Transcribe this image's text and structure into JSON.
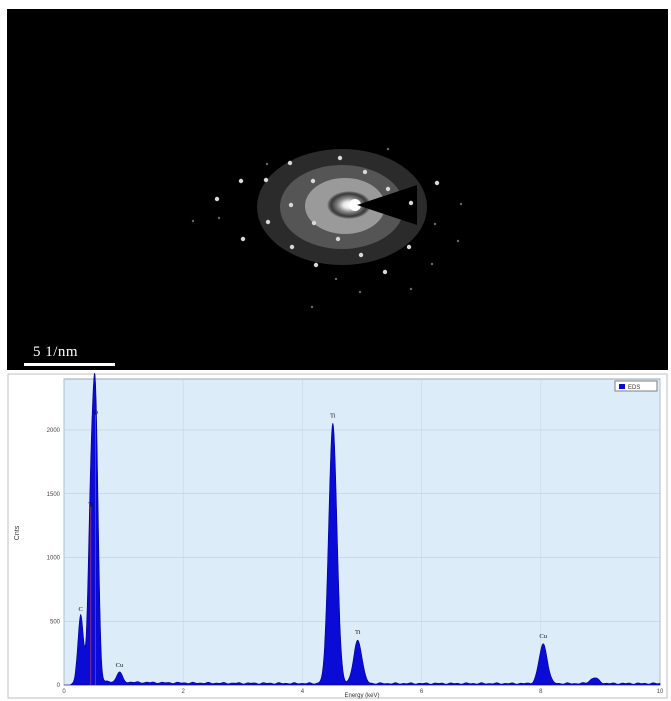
{
  "saed_image": {
    "scale_bar_label": "5 1/nm"
  },
  "chart_data": {
    "type": "area",
    "xlabel": "Energy (keV)",
    "ylabel": "Cnts",
    "xlim": [
      0,
      10
    ],
    "ylim": [
      0,
      2400
    ],
    "x_ticks": [
      0,
      2,
      4,
      6,
      8,
      10
    ],
    "y_ticks": [
      0,
      500,
      1000,
      1500,
      2000
    ],
    "grid": true,
    "legend": {
      "position": "top-right",
      "entries": [
        "EDS"
      ]
    },
    "series": [
      {
        "name": "EDS",
        "color": "#0b0bd6",
        "peaks": [
          {
            "label": "C",
            "energy": 0.28,
            "counts": 520
          },
          {
            "label": "Ti",
            "energy": 0.45,
            "counts": 1340
          },
          {
            "label": "O",
            "energy": 0.53,
            "counts": 2060
          },
          {
            "label": "Cu",
            "energy": 0.93,
            "counts": 80
          },
          {
            "label": "Ti",
            "energy": 4.51,
            "counts": 2040
          },
          {
            "label": "Ti",
            "energy": 4.93,
            "counts": 340
          },
          {
            "label": "Cu",
            "energy": 8.04,
            "counts": 310
          },
          {
            "label": "",
            "energy": 8.9,
            "counts": 45
          }
        ]
      }
    ],
    "annotations": [
      "C",
      "Ti",
      "O",
      "Cu",
      "Ti",
      "Ti",
      "Cu"
    ]
  }
}
